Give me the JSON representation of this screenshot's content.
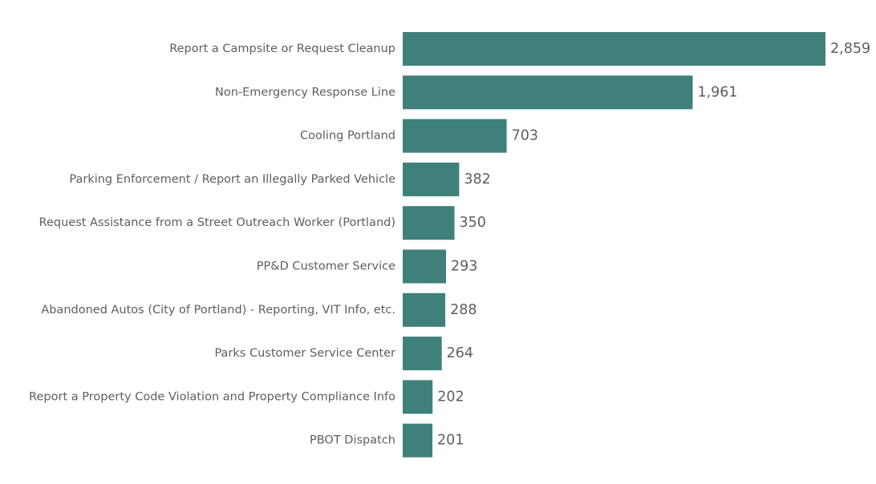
{
  "chart_data": {
    "type": "bar",
    "orientation": "horizontal",
    "categories": [
      "Report a Campsite or Request Cleanup",
      "Non-Emergency Response Line",
      "Cooling Portland",
      "Parking Enforcement / Report an Illegally Parked Vehicle",
      "Request Assistance from a Street Outreach Worker (Portland)",
      "PP&D Customer Service",
      "Abandoned Autos (City of Portland) - Reporting, VIT Info, etc.",
      "Parks Customer Service Center",
      "Report a Property Code Violation and Property Compliance Info",
      "PBOT Dispatch"
    ],
    "values": [
      2859,
      1961,
      703,
      382,
      350,
      293,
      288,
      264,
      202,
      201
    ],
    "value_labels": [
      "2,859",
      "1,961",
      "703",
      "382",
      "350",
      "293",
      "288",
      "264",
      "202",
      "201"
    ],
    "title": "",
    "xlabel": "",
    "ylabel": "",
    "xlim": [
      0,
      2859
    ],
    "grid": false,
    "legend": "none",
    "bar_color": "#40807a"
  }
}
